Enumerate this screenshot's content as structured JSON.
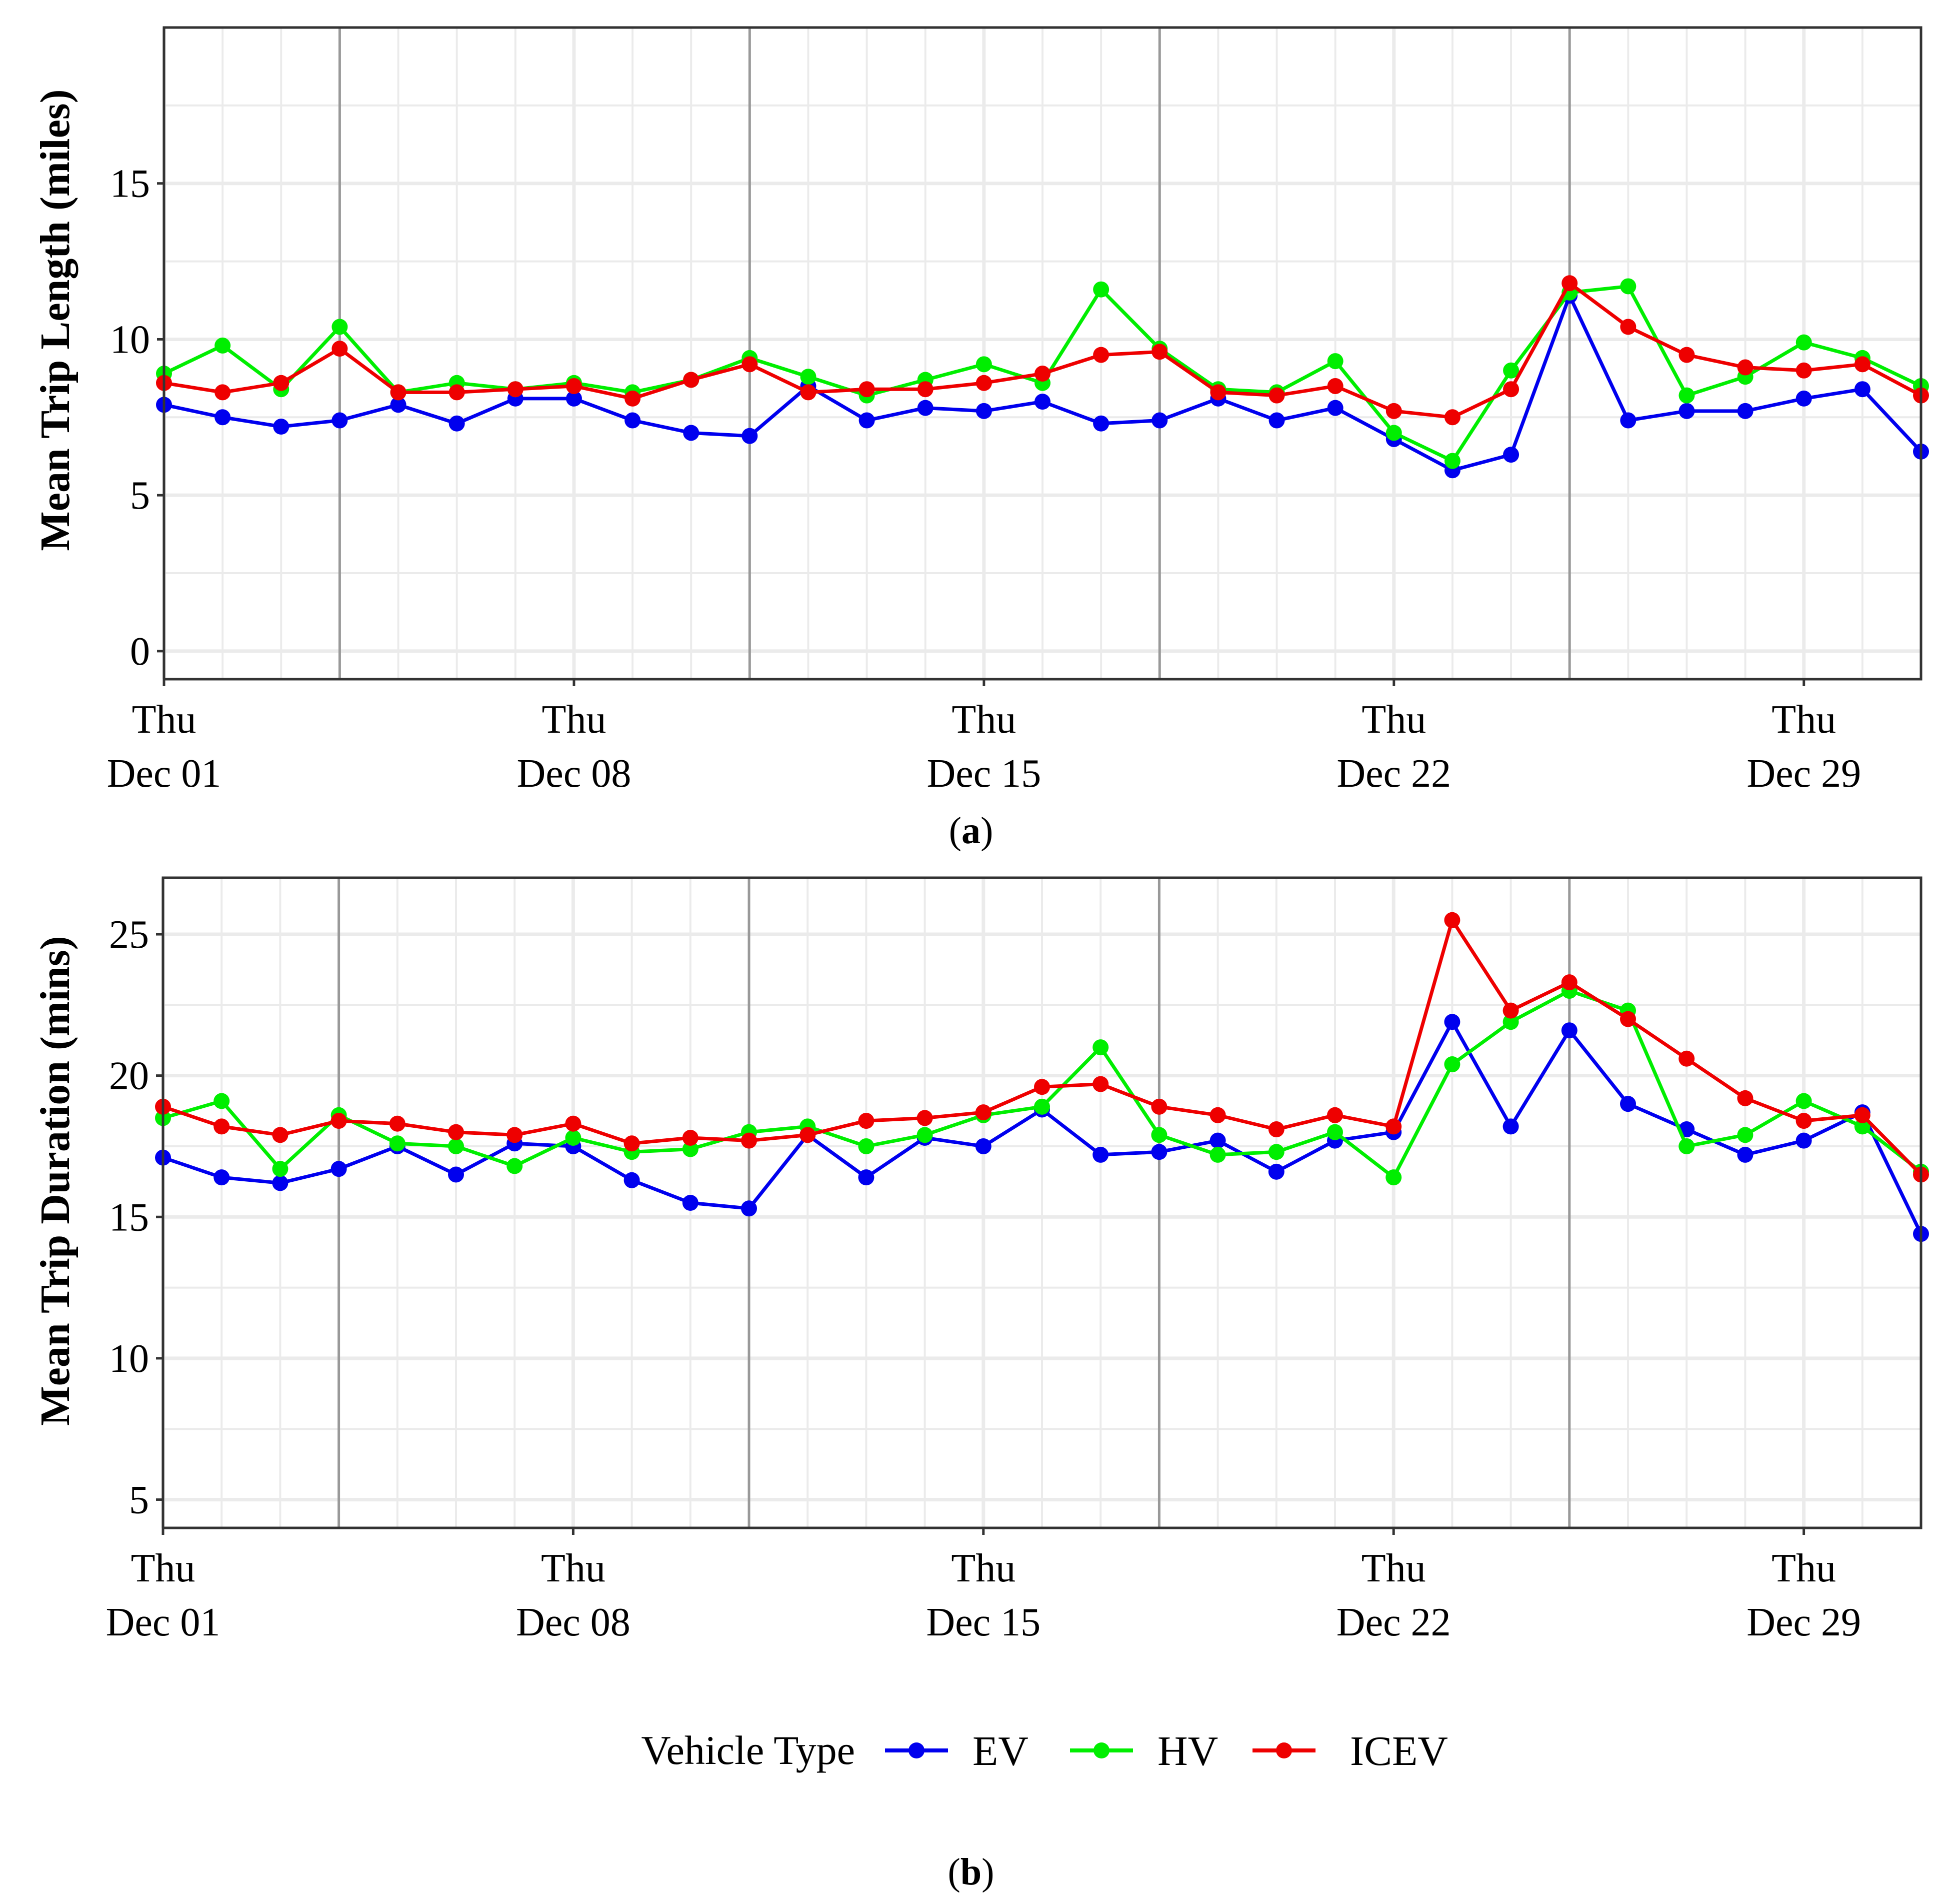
{
  "colors": {
    "EV": "#0000ee",
    "HV": "#00ee00",
    "ICEV": "#ee0000",
    "week_line": "#999999",
    "grid": "#ebebeb",
    "border": "#333333"
  },
  "legend": {
    "title": "Vehicle Type",
    "items": [
      {
        "key": "EV",
        "label": "EV"
      },
      {
        "key": "HV",
        "label": "HV"
      },
      {
        "key": "ICEV",
        "label": "ICEV"
      }
    ]
  },
  "chart_data": [
    {
      "type": "line",
      "caption_letter": "a",
      "ylabel": "Mean Trip Length (miles)",
      "xlabel": "",
      "x_days": [
        1,
        2,
        3,
        4,
        5,
        6,
        7,
        8,
        9,
        10,
        11,
        12,
        13,
        14,
        15,
        16,
        17,
        18,
        19,
        20,
        21,
        22,
        23,
        24,
        25,
        26,
        27,
        28,
        29,
        30,
        31
      ],
      "xlim": [
        1,
        31
      ],
      "ylim": [
        -0.9,
        20
      ],
      "yticks": [
        0,
        5,
        10,
        15
      ],
      "xticks": [
        {
          "day": 1,
          "line1": "Thu",
          "line2": "Dec 01"
        },
        {
          "day": 8,
          "line1": "Thu",
          "line2": "Dec 08"
        },
        {
          "day": 15,
          "line1": "Thu",
          "line2": "Dec 15"
        },
        {
          "day": 22,
          "line1": "Thu",
          "line2": "Dec 22"
        },
        {
          "day": 29,
          "line1": "Thu",
          "line2": "Dec 29"
        }
      ],
      "week_lines": [
        4,
        11,
        18,
        25
      ],
      "series": [
        {
          "name": "EV",
          "values": [
            7.9,
            7.5,
            7.2,
            7.4,
            7.9,
            7.3,
            8.1,
            8.1,
            7.4,
            7.0,
            6.9,
            8.5,
            7.4,
            7.8,
            7.7,
            8.0,
            7.3,
            7.4,
            8.1,
            7.4,
            7.8,
            6.8,
            5.8,
            6.3,
            11.4,
            7.4,
            7.7,
            7.7,
            8.1,
            8.4,
            6.4
          ]
        },
        {
          "name": "HV",
          "values": [
            8.9,
            9.8,
            8.4,
            10.4,
            8.3,
            8.6,
            8.4,
            8.6,
            8.3,
            8.7,
            9.4,
            8.8,
            8.2,
            8.7,
            9.2,
            8.6,
            11.6,
            9.7,
            8.4,
            8.3,
            9.3,
            7.0,
            6.1,
            9.0,
            11.5,
            11.7,
            8.2,
            8.8,
            9.9,
            9.4,
            8.5
          ]
        },
        {
          "name": "ICEV",
          "values": [
            8.6,
            8.3,
            8.6,
            9.7,
            8.3,
            8.3,
            8.4,
            8.5,
            8.1,
            8.7,
            9.2,
            8.3,
            8.4,
            8.4,
            8.6,
            8.9,
            9.5,
            9.6,
            8.3,
            8.2,
            8.5,
            7.7,
            7.5,
            8.4,
            11.8,
            10.4,
            9.5,
            9.1,
            9.0,
            9.2,
            8.2
          ]
        }
      ]
    },
    {
      "type": "line",
      "caption_letter": "b",
      "ylabel": "Mean Trip Duration (mins)",
      "xlabel": "",
      "x_days": [
        1,
        2,
        3,
        4,
        5,
        6,
        7,
        8,
        9,
        10,
        11,
        12,
        13,
        14,
        15,
        16,
        17,
        18,
        19,
        20,
        21,
        22,
        23,
        24,
        25,
        26,
        27,
        28,
        29,
        30,
        31
      ],
      "xlim": [
        1,
        31
      ],
      "ylim": [
        4.0,
        27.0
      ],
      "yticks": [
        5,
        10,
        15,
        20,
        25
      ],
      "xticks": [
        {
          "day": 1,
          "line1": "Thu",
          "line2": "Dec 01"
        },
        {
          "day": 8,
          "line1": "Thu",
          "line2": "Dec 08"
        },
        {
          "day": 15,
          "line1": "Thu",
          "line2": "Dec 15"
        },
        {
          "day": 22,
          "line1": "Thu",
          "line2": "Dec 22"
        },
        {
          "day": 29,
          "line1": "Thu",
          "line2": "Dec 29"
        }
      ],
      "week_lines": [
        4,
        11,
        18,
        25
      ],
      "series": [
        {
          "name": "EV",
          "values": [
            17.1,
            16.4,
            16.2,
            16.7,
            17.5,
            16.5,
            17.6,
            17.5,
            16.3,
            15.5,
            15.3,
            17.9,
            16.4,
            17.8,
            17.5,
            18.8,
            17.2,
            17.3,
            17.7,
            16.6,
            17.7,
            18.0,
            21.9,
            18.2,
            21.6,
            19.0,
            18.1,
            17.2,
            17.7,
            18.7,
            14.4
          ]
        },
        {
          "name": "HV",
          "values": [
            18.5,
            19.1,
            16.7,
            18.6,
            17.6,
            17.5,
            16.8,
            17.8,
            17.3,
            17.4,
            18.0,
            18.2,
            17.5,
            17.9,
            18.6,
            18.9,
            21.0,
            17.9,
            17.2,
            17.3,
            18.0,
            16.4,
            20.4,
            21.9,
            23.0,
            22.3,
            17.5,
            17.9,
            19.1,
            18.2,
            16.6
          ]
        },
        {
          "name": "ICEV",
          "values": [
            18.9,
            18.2,
            17.9,
            18.4,
            18.3,
            18.0,
            17.9,
            18.3,
            17.6,
            17.8,
            17.7,
            17.9,
            18.4,
            18.5,
            18.7,
            19.6,
            19.7,
            18.9,
            18.6,
            18.1,
            18.6,
            18.2,
            25.5,
            22.3,
            23.3,
            22.0,
            20.6,
            19.2,
            18.4,
            18.6,
            16.5
          ]
        }
      ]
    }
  ]
}
